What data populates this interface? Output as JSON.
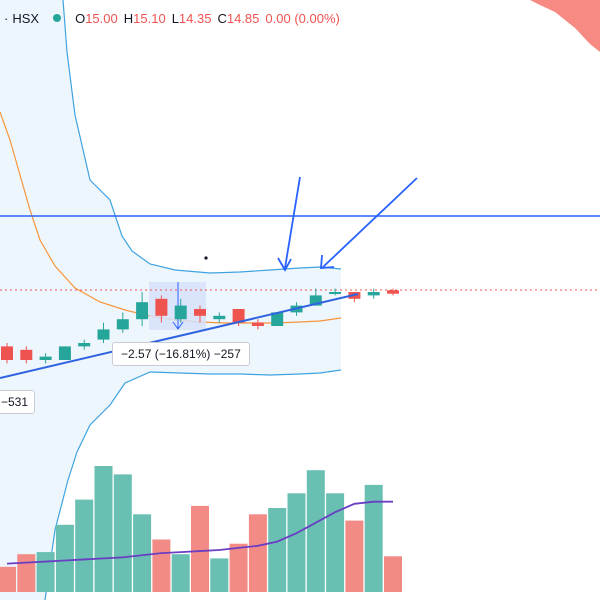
{
  "legend": {
    "separator": "·",
    "exchange": "HSX",
    "open_key": "O",
    "open": "15.00",
    "high_key": "H",
    "high": "15.10",
    "low_key": "L",
    "low": "14.35",
    "close_key": "C",
    "close": "14.85",
    "change": "0.00 (0.00%)"
  },
  "measure": {
    "label": "−2.57 (−16.81%) −257"
  },
  "left_label": "−531",
  "colors": {
    "up": "#26a69a",
    "down": "#ef5350",
    "up_volume": "#68bfb2",
    "down_volume": "#f28b85",
    "bollinger": "#3fa3e0",
    "bollinger_fill": "#eef6fd",
    "moving_average": "#f7953b",
    "volume_ma": "#6a3fc3",
    "horizontal_line": "#2962ff",
    "trend_line": "#2f63e0",
    "arrow": "#2962ff",
    "price_line": "#ef5350",
    "measure_box": "#d6e2fb"
  },
  "chart_data": {
    "type": "candlestick",
    "candles": [
      {
        "o": 16.2,
        "h": 16.3,
        "l": 15.7,
        "c": 15.8
      },
      {
        "o": 16.1,
        "h": 16.2,
        "l": 15.7,
        "c": 15.8
      },
      {
        "o": 15.8,
        "h": 16.0,
        "l": 15.7,
        "c": 15.9
      },
      {
        "o": 15.8,
        "h": 16.2,
        "l": 15.8,
        "c": 16.2
      },
      {
        "o": 16.2,
        "h": 16.4,
        "l": 16.1,
        "c": 16.3
      },
      {
        "o": 16.4,
        "h": 16.9,
        "l": 16.3,
        "c": 16.7
      },
      {
        "o": 16.7,
        "h": 17.2,
        "l": 16.6,
        "c": 17.0
      },
      {
        "o": 17.0,
        "h": 17.8,
        "l": 16.8,
        "c": 17.5
      },
      {
        "o": 17.6,
        "h": 17.7,
        "l": 16.9,
        "c": 17.1
      },
      {
        "o": 17.0,
        "h": 17.6,
        "l": 16.9,
        "c": 17.4
      },
      {
        "o": 17.3,
        "h": 17.4,
        "l": 16.9,
        "c": 17.1
      },
      {
        "o": 17.0,
        "h": 17.2,
        "l": 16.9,
        "c": 17.1
      },
      {
        "o": 17.3,
        "h": 17.3,
        "l": 16.8,
        "c": 16.9
      },
      {
        "o": 16.9,
        "h": 17.0,
        "l": 16.7,
        "c": 16.8
      },
      {
        "o": 16.8,
        "h": 17.2,
        "l": 16.8,
        "c": 17.2
      },
      {
        "o": 17.2,
        "h": 17.5,
        "l": 17.1,
        "c": 17.4
      },
      {
        "o": 17.4,
        "h": 17.9,
        "l": 17.4,
        "c": 17.7
      },
      {
        "o": 17.8,
        "h": 17.9,
        "l": 17.7,
        "c": 17.8
      },
      {
        "o": 17.8,
        "h": 17.8,
        "l": 17.5,
        "c": 17.6
      },
      {
        "o": 17.7,
        "h": 17.9,
        "l": 17.6,
        "c": 17.8
      },
      {
        "o": 17.85,
        "h": 17.9,
        "l": 17.7,
        "c": 17.75
      }
    ],
    "volume": [
      12,
      18,
      19,
      32,
      44,
      60,
      56,
      37,
      25,
      18,
      41,
      16,
      23,
      37,
      40,
      47,
      58,
      47,
      34,
      51,
      17
    ],
    "volume_ma": [
      13.5,
      14,
      14.5,
      15,
      15.5,
      16,
      16.5,
      17.5,
      18.5,
      19,
      19.5,
      20,
      21,
      22,
      24,
      28,
      33,
      38,
      42,
      43,
      43
    ],
    "price_range": [
      14.6,
      18.9
    ],
    "volume_range": [
      0,
      70
    ]
  }
}
